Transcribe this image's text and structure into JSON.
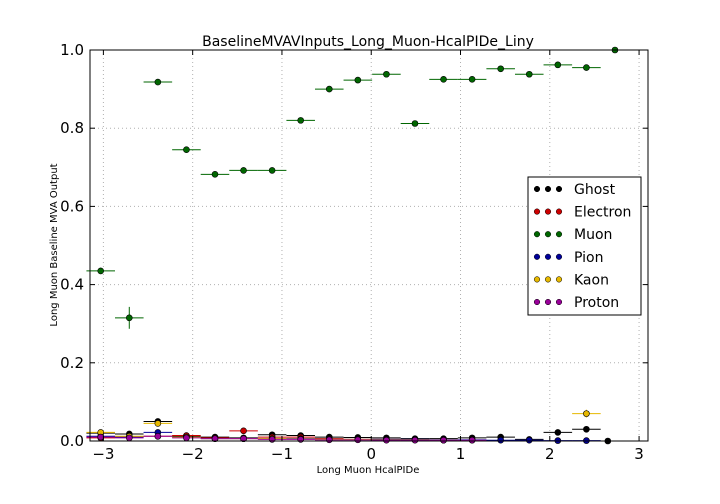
{
  "chart_data": {
    "type": "scatter",
    "title": "BaselineMVAVInputs_Long_Muon-HcalPIDe_Liny",
    "xlabel": "Long Muon HcalPIDe",
    "ylabel": "Long Muon Baseline MVA Output",
    "xlim": [
      -3.15,
      3.1
    ],
    "ylim": [
      0.0,
      1.0
    ],
    "xticks": [
      -3,
      -2,
      -1,
      0,
      1,
      2,
      3
    ],
    "xtick_labels": [
      "−3",
      "−2",
      "−1",
      "0",
      "1",
      "2",
      "3"
    ],
    "yticks": [
      0.0,
      0.2,
      0.4,
      0.6,
      0.8,
      1.0
    ],
    "ytick_labels": [
      "0.0",
      "0.2",
      "0.4",
      "0.6",
      "0.8",
      "1.0"
    ],
    "grid": true,
    "legend_position": "right",
    "bin_half_width": 0.16,
    "series": [
      {
        "name": "Ghost",
        "color": "#000000",
        "x": [
          -3.03,
          -2.71,
          -2.39,
          -2.07,
          -1.75,
          -1.43,
          -1.11,
          -0.79,
          -0.47,
          -0.15,
          0.17,
          0.49,
          0.81,
          1.13,
          1.45,
          1.77,
          2.09,
          2.41,
          2.65
        ],
        "y": [
          0.02,
          0.018,
          0.05,
          0.012,
          0.01,
          0.008,
          0.016,
          0.014,
          0.01,
          0.009,
          0.008,
          0.006,
          0.006,
          0.008,
          0.01,
          0.004,
          0.022,
          0.03,
          0.0
        ],
        "yerr": [
          0.004,
          0.003,
          0.006,
          0.003,
          0.002,
          0.002,
          0.003,
          0.003,
          0.002,
          0.002,
          0.002,
          0.002,
          0.002,
          0.002,
          0.002,
          0.002,
          0.005,
          0.006,
          0.001
        ]
      },
      {
        "name": "Electron",
        "color": "#cc0000",
        "x": [
          -3.03,
          -2.71,
          -2.39,
          -2.07,
          -1.75,
          -1.43,
          -1.11,
          -0.79,
          -0.47,
          -0.15,
          0.17,
          0.49,
          0.81,
          1.13
        ],
        "y": [
          0.008,
          0.01,
          0.012,
          0.014,
          0.008,
          0.026,
          0.01,
          0.01,
          0.006,
          0.004,
          0.004,
          0.003,
          0.002,
          0.002
        ],
        "yerr": [
          0.002,
          0.002,
          0.003,
          0.003,
          0.002,
          0.005,
          0.002,
          0.002,
          0.002,
          0.001,
          0.001,
          0.001,
          0.001,
          0.001
        ]
      },
      {
        "name": "Muon",
        "color": "#006600",
        "x": [
          -3.03,
          -2.71,
          -2.39,
          -2.07,
          -1.75,
          -1.43,
          -1.11,
          -0.79,
          -0.47,
          -0.15,
          0.17,
          0.49,
          0.81,
          1.13,
          1.45,
          1.77,
          2.09,
          2.41,
          2.73
        ],
        "y": [
          0.435,
          0.315,
          0.918,
          0.745,
          0.682,
          0.692,
          0.692,
          0.82,
          0.9,
          0.923,
          0.938,
          0.812,
          0.925,
          0.925,
          0.952,
          0.938,
          0.962,
          0.955,
          1.0
        ],
        "yerr": [
          0.008,
          0.028,
          0.004,
          0.005,
          0.005,
          0.004,
          0.004,
          0.003,
          0.003,
          0.003,
          0.003,
          0.004,
          0.003,
          0.003,
          0.003,
          0.003,
          0.004,
          0.004,
          0.001
        ]
      },
      {
        "name": "Pion",
        "color": "#000099",
        "x": [
          -3.03,
          -2.71,
          -2.39,
          -2.07,
          -1.75,
          -1.43,
          -1.11,
          -0.79,
          -0.47,
          -0.15,
          0.17,
          0.49,
          0.81,
          1.13,
          1.45,
          1.77,
          2.09,
          2.41
        ],
        "y": [
          0.012,
          0.01,
          0.022,
          0.01,
          0.006,
          0.006,
          0.006,
          0.006,
          0.004,
          0.004,
          0.004,
          0.004,
          0.003,
          0.003,
          0.002,
          0.002,
          0.001,
          0.001
        ],
        "yerr": [
          0.002,
          0.002,
          0.004,
          0.002,
          0.001,
          0.001,
          0.001,
          0.001,
          0.001,
          0.001,
          0.001,
          0.001,
          0.001,
          0.001,
          0.001,
          0.001,
          0.001,
          0.001
        ]
      },
      {
        "name": "Kaon",
        "color": "#e6b800",
        "x": [
          -3.03,
          -2.71,
          -2.39,
          -2.07,
          -1.75,
          -1.43,
          -1.11,
          -0.79,
          -0.47,
          -0.15,
          0.17,
          0.49,
          0.81,
          2.41
        ],
        "y": [
          0.022,
          0.012,
          0.045,
          0.01,
          0.006,
          0.006,
          0.006,
          0.005,
          0.004,
          0.004,
          0.003,
          0.003,
          0.002,
          0.07
        ],
        "yerr": [
          0.004,
          0.003,
          0.006,
          0.002,
          0.002,
          0.002,
          0.002,
          0.001,
          0.001,
          0.001,
          0.001,
          0.001,
          0.001,
          0.01
        ]
      },
      {
        "name": "Proton",
        "color": "#990099",
        "x": [
          -3.03,
          -2.71,
          -2.39,
          -2.07,
          -1.75,
          -1.43,
          -1.11,
          -0.79,
          -0.47,
          -0.15,
          0.17,
          0.49,
          0.81,
          1.13
        ],
        "y": [
          0.01,
          0.008,
          0.012,
          0.008,
          0.006,
          0.006,
          0.004,
          0.004,
          0.003,
          0.003,
          0.002,
          0.002,
          0.002,
          0.002
        ],
        "yerr": [
          0.002,
          0.002,
          0.003,
          0.002,
          0.001,
          0.001,
          0.001,
          0.001,
          0.001,
          0.001,
          0.001,
          0.001,
          0.001,
          0.001
        ]
      }
    ]
  }
}
